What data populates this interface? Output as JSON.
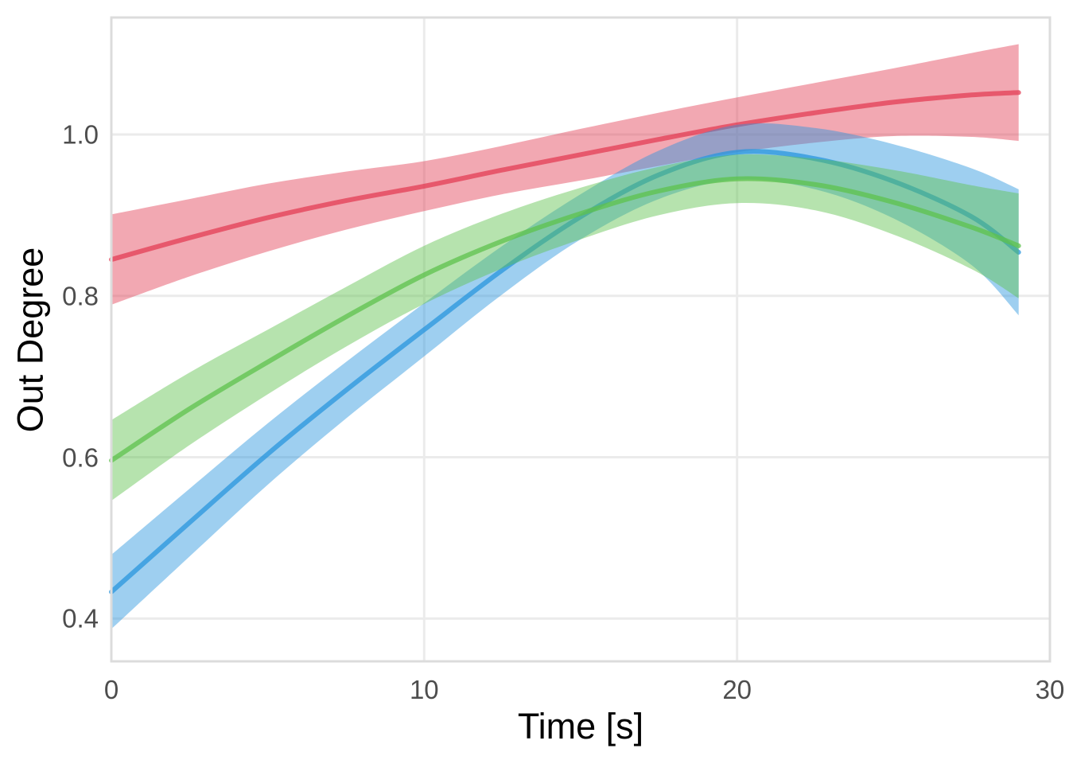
{
  "chart_data": {
    "type": "line",
    "title": "",
    "xlabel": "Time [s]",
    "ylabel": "Out Degree",
    "xlim": [
      0,
      30
    ],
    "ylim": [
      0.347,
      1.145
    ],
    "x_tick_values": [
      0,
      10,
      20,
      30
    ],
    "x_tick_labels": [
      "0",
      "10",
      "20",
      "30"
    ],
    "y_tick_values": [
      0.4,
      0.6,
      0.8,
      1.0
    ],
    "y_tick_labels": [
      "0.4",
      "0.6",
      "0.8",
      "1.0"
    ],
    "grid": true,
    "legend": "none",
    "background_color": "#ffffff",
    "grid_color": "#ebebeb",
    "panel_border_color": "#dcdcdc",
    "tick_label_color": "#4d4d4d",
    "axis_title_color": "#000000",
    "band_alpha": 0.45,
    "line_alpha": 0.75,
    "line_width": 6,
    "x": [
      0,
      2.5,
      5,
      7.5,
      10,
      12.5,
      15,
      17.5,
      20,
      22.5,
      25,
      27.5,
      29
    ],
    "series": [
      {
        "name": "red",
        "color": "#E33E54",
        "values": [
          0.845,
          0.872,
          0.897,
          0.918,
          0.936,
          0.956,
          0.975,
          0.994,
          1.012,
          1.027,
          1.04,
          1.049,
          1.052
        ],
        "lower": [
          0.789,
          0.824,
          0.855,
          0.882,
          0.905,
          0.926,
          0.943,
          0.961,
          0.978,
          0.99,
          0.998,
          0.997,
          0.992
        ],
        "upper": [
          0.901,
          0.92,
          0.939,
          0.954,
          0.967,
          0.986,
          1.007,
          1.027,
          1.046,
          1.064,
          1.082,
          1.101,
          1.112
        ]
      },
      {
        "name": "blue",
        "color": "#2895DE",
        "values": [
          0.433,
          0.519,
          0.604,
          0.683,
          0.758,
          0.832,
          0.898,
          0.95,
          0.978,
          0.97,
          0.942,
          0.898,
          0.854
        ],
        "lower": [
          0.387,
          0.477,
          0.566,
          0.648,
          0.725,
          0.802,
          0.87,
          0.92,
          0.944,
          0.932,
          0.896,
          0.838,
          0.776
        ],
        "upper": [
          0.479,
          0.561,
          0.642,
          0.718,
          0.791,
          0.862,
          0.926,
          0.98,
          1.012,
          1.008,
          0.988,
          0.958,
          0.932
        ]
      },
      {
        "name": "green",
        "color": "#5DC14C",
        "values": [
          0.596,
          0.66,
          0.718,
          0.774,
          0.826,
          0.868,
          0.902,
          0.93,
          0.945,
          0.938,
          0.916,
          0.885,
          0.862
        ],
        "lower": [
          0.546,
          0.615,
          0.678,
          0.737,
          0.79,
          0.834,
          0.87,
          0.9,
          0.915,
          0.906,
          0.876,
          0.833,
          0.797
        ],
        "upper": [
          0.646,
          0.705,
          0.758,
          0.811,
          0.862,
          0.902,
          0.934,
          0.96,
          0.975,
          0.97,
          0.956,
          0.937,
          0.927
        ]
      }
    ]
  }
}
